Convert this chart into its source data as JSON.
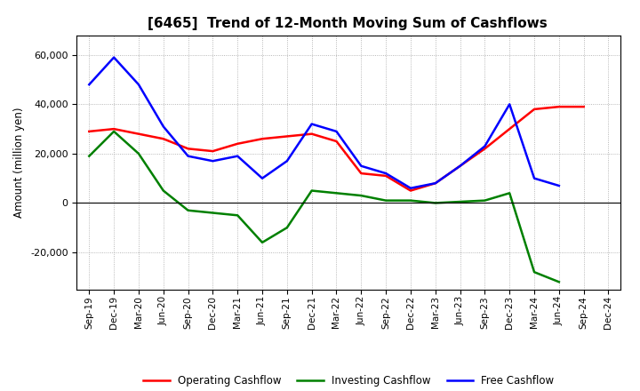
{
  "title": "[6465]  Trend of 12-Month Moving Sum of Cashflows",
  "ylabel": "Amount (million yen)",
  "ylim": [
    -35000,
    68000
  ],
  "yticks": [
    -20000,
    0,
    20000,
    40000,
    60000
  ],
  "x_labels": [
    "Sep-19",
    "Dec-19",
    "Mar-20",
    "Jun-20",
    "Sep-20",
    "Dec-20",
    "Mar-21",
    "Jun-21",
    "Sep-21",
    "Dec-21",
    "Mar-22",
    "Jun-22",
    "Sep-22",
    "Dec-22",
    "Mar-23",
    "Jun-23",
    "Sep-23",
    "Dec-23",
    "Mar-24",
    "Jun-24",
    "Sep-24",
    "Dec-24"
  ],
  "operating": [
    29000,
    30000,
    28000,
    26000,
    22000,
    21000,
    24000,
    26000,
    27000,
    28000,
    25000,
    12000,
    11000,
    5000,
    8000,
    15000,
    22000,
    30000,
    38000,
    39000,
    39000,
    null
  ],
  "investing": [
    19000,
    29000,
    20000,
    5000,
    -3000,
    -4000,
    -5000,
    -16000,
    -10000,
    5000,
    4000,
    3000,
    1000,
    1000,
    0,
    500,
    1000,
    4000,
    -28000,
    -32000,
    null,
    null
  ],
  "free": [
    48000,
    59000,
    48000,
    31000,
    19000,
    17000,
    19000,
    10000,
    17000,
    32000,
    29000,
    15000,
    12000,
    6000,
    8000,
    15000,
    23000,
    40000,
    10000,
    7000,
    null,
    null
  ],
  "operating_color": "#ff0000",
  "investing_color": "#008000",
  "free_color": "#0000ff",
  "bg_color": "#ffffff",
  "plot_bg_color": "#ffffff",
  "grid_color": "#999999",
  "line_width": 1.8,
  "title_fontsize": 11,
  "legend_labels": [
    "Operating Cashflow",
    "Investing Cashflow",
    "Free Cashflow"
  ]
}
